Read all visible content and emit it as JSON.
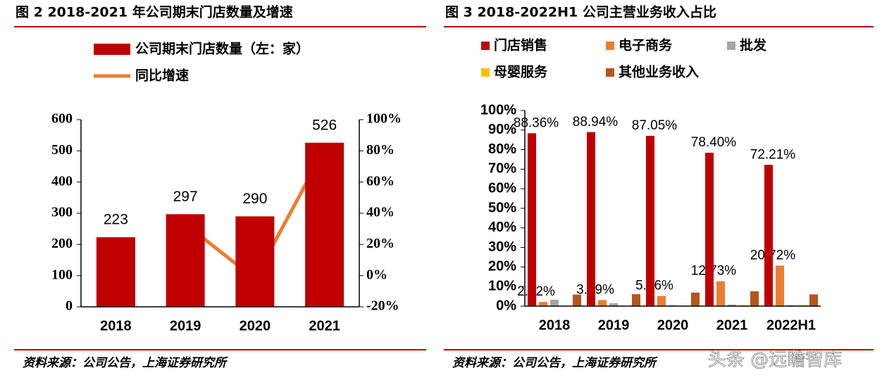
{
  "chart_data": [
    {
      "type": "bar",
      "title": "图 2 2018-2021 年公司期末门店数量及增速",
      "categories": [
        "2018",
        "2019",
        "2020",
        "2021"
      ],
      "series": [
        {
          "name": "公司期末门店数量（左：家）",
          "color": "#C00000",
          "values": [
            223,
            297,
            290,
            526
          ]
        },
        {
          "name": "同比增速",
          "color": "#ED7D31",
          "type": "line",
          "axis": "y2",
          "values": [
            null,
            33,
            -2,
            81
          ]
        }
      ],
      "ylim": [
        0,
        600
      ],
      "yticks": [
        0,
        100,
        200,
        300,
        400,
        500,
        600
      ],
      "y2lim": [
        -20,
        100
      ],
      "y2ticks": [
        {
          "value": -20,
          "label": "-20%"
        },
        {
          "value": 0,
          "label": "0%"
        },
        {
          "value": 20,
          "label": "20%"
        },
        {
          "value": 40,
          "label": "40%"
        },
        {
          "value": 60,
          "label": "60%"
        },
        {
          "value": 80,
          "label": "80%"
        },
        {
          "value": 100,
          "label": "100%"
        }
      ],
      "source": "资料来源：公司公告，上海证券研究所"
    },
    {
      "type": "bar",
      "title": "图 3 2018-2022H1 公司主营业务收入占比",
      "categories": [
        "2018",
        "2019",
        "2020",
        "2021",
        "2022H1"
      ],
      "series": [
        {
          "name": "门店销售",
          "color": "#C00000",
          "values": [
            88.36,
            88.94,
            87.05,
            78.4,
            72.21
          ],
          "value_labels": [
            "88.36%",
            "88.94%",
            "87.05%",
            "78.40%",
            "72.21%"
          ]
        },
        {
          "name": "电子商务",
          "color": "#ED7D31",
          "values": [
            2.12,
            3.09,
            5.16,
            12.73,
            20.72
          ],
          "value_labels": [
            "2.12%",
            "3.09%",
            "5.16%",
            "12.73%",
            "20.72%"
          ]
        },
        {
          "name": "批发",
          "color": "#A5A5A5",
          "values": [
            3.3,
            1.5,
            0.5,
            0.8,
            0.5
          ]
        },
        {
          "name": "母婴服务",
          "color": "#FFC000",
          "values": [
            0.1,
            0.2,
            0.3,
            0.5,
            0.5
          ]
        },
        {
          "name": "其他业务收入",
          "color": "#B5561B",
          "values": [
            5.9,
            6.1,
            6.9,
            7.6,
            6.0
          ]
        }
      ],
      "ylim": [
        0,
        100
      ],
      "yticks": [
        {
          "value": 0,
          "label": "0%"
        },
        {
          "value": 10,
          "label": "10%"
        },
        {
          "value": 20,
          "label": "20%"
        },
        {
          "value": 30,
          "label": "30%"
        },
        {
          "value": 40,
          "label": "40%"
        },
        {
          "value": 50,
          "label": "50%"
        },
        {
          "value": 60,
          "label": "60%"
        },
        {
          "value": 70,
          "label": "70%"
        },
        {
          "value": 80,
          "label": "80%"
        },
        {
          "value": 90,
          "label": "90%"
        },
        {
          "value": 100,
          "label": "100%"
        }
      ],
      "source": "资料来源：公司公告，上海证券研究所"
    }
  ],
  "watermark": "头条 @远瞻智库"
}
